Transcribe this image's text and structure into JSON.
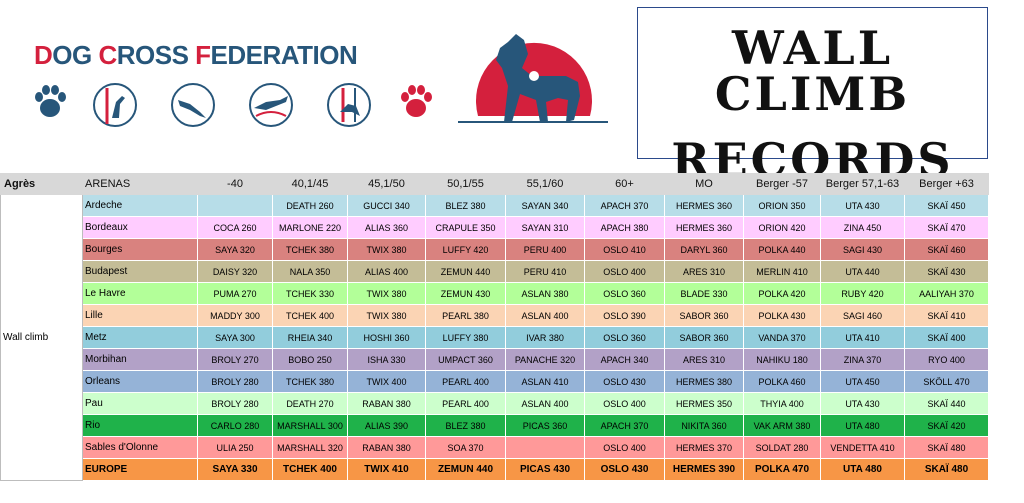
{
  "logo": {
    "title_parts": [
      {
        "text": "D",
        "color": "#d4203d"
      },
      {
        "text": "OG ",
        "color": "#27567a"
      },
      {
        "text": "C",
        "color": "#d4203d"
      },
      {
        "text": "ROSS ",
        "color": "#27567a"
      },
      {
        "text": "F",
        "color": "#d4203d"
      },
      {
        "text": "EDERATION",
        "color": "#27567a"
      }
    ],
    "icons": [
      "paw-print-icon",
      "dog-high-jump-icon",
      "dog-tunnel-icon",
      "dog-running-icon",
      "dog-weave-icon",
      "paw-print-icon"
    ]
  },
  "title": {
    "line1": "WALL CLIMB",
    "line2": "RECORDS"
  },
  "table": {
    "headers": [
      "Agrès",
      "ARENAS",
      "-40",
      "40,1/45",
      "45,1/50",
      "50,1/55",
      "55,1/60",
      "60+",
      "MO",
      "Berger -57",
      "Berger 57,1-63",
      "Berger +63"
    ],
    "discipline": "Wall climb",
    "rows": [
      {
        "arena": "Ardeche",
        "color": "#b7dde8",
        "cells": [
          "",
          "DEATH 260",
          "GUCCI 340",
          "BLEZ 380",
          "SAYAN 340",
          "APACH 370",
          "HERMES 360",
          "ORION 350",
          "UTA 430",
          "SKAÏ 450"
        ]
      },
      {
        "arena": "Bordeaux",
        "color": "#ffccff",
        "cells": [
          "COCA 260",
          "MARLONE 220",
          "ALIAS 360",
          "CRAPULE 350",
          "SAYAN 310",
          "APACH 380",
          "HERMES 360",
          "ORION 420",
          "ZINA 450",
          "SKAÏ 470"
        ]
      },
      {
        "arena": "Bourges",
        "color": "#d9827f",
        "cells": [
          "SAYA 320",
          "TCHEK 380",
          "TWIX 380",
          "LUFFY 420",
          "PERU 400",
          "OSLO 410",
          "DARYL 360",
          "POLKA 440",
          "SAGI 430",
          "SKAÏ 460"
        ]
      },
      {
        "arena": "Budapest",
        "color": "#c4bd97",
        "cells": [
          "DAISY 320",
          "NALA 350",
          "ALIAS 400",
          "ZEMUN 440",
          "PERU 410",
          "OSLO 400",
          "ARES 310",
          "MERLIN 410",
          "UTA 440",
          "SKAÏ 430"
        ]
      },
      {
        "arena": "Le Havre",
        "color": "#b3ff99",
        "cells": [
          "PUMA 270",
          "TCHEK 330",
          "TWIX 380",
          "ZEMUN 430",
          "ASLAN 380",
          "OSLO 360",
          "BLADE 330",
          "POLKA 420",
          "RUBY 420",
          "AALIYAH 370"
        ]
      },
      {
        "arena": "Lille",
        "color": "#fbd4b4",
        "cells": [
          "MADDY 300",
          "TCHEK 400",
          "TWIX 380",
          "PEARL 380",
          "ASLAN 400",
          "OSLO 390",
          "SABOR 360",
          "POLKA 430",
          "SAGI 460",
          "SKAÏ 410"
        ]
      },
      {
        "arena": "Metz",
        "color": "#92cddc",
        "cells": [
          "SAYA 300",
          "RHEIA 340",
          "HOSHI 360",
          "LUFFY 380",
          "IVAR 380",
          "OSLO 360",
          "SABOR 360",
          "VANDA 370",
          "UTA 410",
          "SKAÏ 400"
        ]
      },
      {
        "arena": "Morbihan",
        "color": "#b2a1c7",
        "cells": [
          "BROLY 270",
          "BOBO 250",
          "ISHA 330",
          "UMPACT 360",
          "PANACHE 320",
          "APACH 340",
          "ARES 310",
          "NAHIKU 180",
          "ZINA 370",
          "RYO 400"
        ]
      },
      {
        "arena": "Orleans",
        "color": "#95b3d7",
        "cells": [
          "BROLY 280",
          "TCHEK 380",
          "TWIX 400",
          "PEARL 400",
          "ASLAN 410",
          "OSLO 430",
          "HERMES 380",
          "POLKA 460",
          "UTA 450",
          "SKÖLL 470"
        ]
      },
      {
        "arena": "Pau",
        "color": "#ccffcc",
        "cells": [
          "BROLY 280",
          "DEATH 270",
          "RABAN 380",
          "PEARL 400",
          "ASLAN 400",
          "OSLO 400",
          "HERMES 350",
          "THYIA 400",
          "UTA 430",
          "SKAÏ 440"
        ]
      },
      {
        "arena": "Rio",
        "color": "#1fb24a",
        "cells": [
          "CARLO 280",
          "MARSHALL 300",
          "ALIAS 390",
          "BLEZ 380",
          "PICAS 360",
          "APACH 370",
          "NIKITA 360",
          "VAK ARM 380",
          "UTA 480",
          "SKAÏ 420"
        ]
      },
      {
        "arena": "Sables d'Olonne",
        "color": "#ff9999",
        "cells": [
          "ULIA 250",
          "MARSHALL 320",
          "RABAN 380",
          "SOA 370",
          "",
          "OSLO 400",
          "HERMES 370",
          "SOLDAT 280",
          "VENDETTA 410",
          "SKAÏ 480"
        ]
      }
    ],
    "totals": {
      "arena": "EUROPE",
      "color": "#f79646",
      "cells": [
        "SAYA 330",
        "TCHEK 400",
        "TWIX 410",
        "ZEMUN 440",
        "PICAS 430",
        "OSLO 430",
        "HERMES 390",
        "POLKA 470",
        "UTA 480",
        "SKAÏ 480"
      ]
    }
  },
  "colors": {
    "brand_red": "#d4203d",
    "brand_blue": "#27567a",
    "header_gray": "#d8d8d8"
  }
}
